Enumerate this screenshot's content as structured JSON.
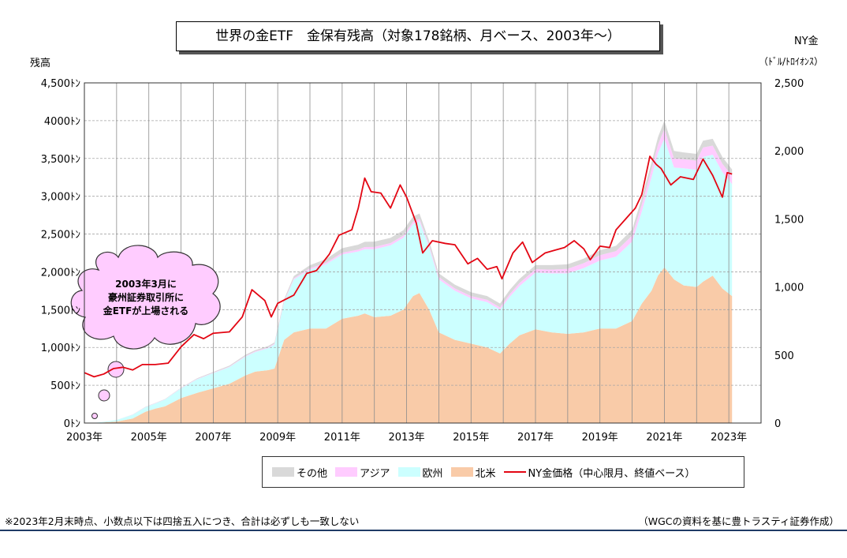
{
  "header": {
    "title": "世界の金ETF　金保有残高（対象178銘柄、月ベース、2003年～）",
    "left_axis_title": "残高",
    "right_axis_title": "NY金",
    "right_axis_unit": "（ﾄﾞﾙ/ﾄﾛｲｵﾝｽ）"
  },
  "callout": {
    "line1": "2003年3月に",
    "line2": "豪州証券取引所に",
    "line3": "金ETFが上場される"
  },
  "footer": {
    "note": "※2023年2月末時点、小数点以下は四捨五入につき、合計は必ずしも一致しない",
    "source": "（WGCの資料を基に豊トラスティ証券作成）"
  },
  "colors": {
    "other": "#d9d9d9",
    "asia": "#ffccff",
    "europe": "#ccffff",
    "north_america": "#f9cba8",
    "price": "#e30613",
    "grid": "#a6a6a6"
  },
  "chart_data": {
    "type": "area",
    "left_axis": {
      "min": 0,
      "max": 4500,
      "step": 500,
      "ticks": [
        "0ﾄﾝ",
        "500ﾄﾝ",
        "1,000ﾄﾝ",
        "1,500ﾄﾝ",
        "2,000ﾄﾝ",
        "2,500ﾄﾝ",
        "3,000ﾄﾝ",
        "3,500ﾄﾝ",
        "4000ﾄﾝ",
        "4,500ﾄﾝ"
      ]
    },
    "right_axis": {
      "min": 0,
      "max": 2500,
      "step": 500,
      "ticks": [
        "0",
        "500",
        "1,000",
        "1,500",
        "2,000",
        "2,500"
      ]
    },
    "x_axis": {
      "min": 2003,
      "max": 2024,
      "ticks": [
        {
          "x": 2003,
          "label": "2003年"
        },
        {
          "x": 2005,
          "label": "2005年"
        },
        {
          "x": 2007,
          "label": "2007年"
        },
        {
          "x": 2009,
          "label": "2009年"
        },
        {
          "x": 2011,
          "label": "2011年"
        },
        {
          "x": 2013,
          "label": "2013年"
        },
        {
          "x": 2015,
          "label": "2015年"
        },
        {
          "x": 2017,
          "label": "2017年"
        },
        {
          "x": 2019,
          "label": "2019年"
        },
        {
          "x": 2021,
          "label": "2021年"
        },
        {
          "x": 2023,
          "label": "2023年"
        }
      ],
      "gridlines": [
        2004,
        2005,
        2006,
        2007,
        2008,
        2009,
        2010,
        2011,
        2012,
        2013,
        2014,
        2015,
        2016,
        2017,
        2018,
        2019,
        2020,
        2021,
        2022,
        2023
      ]
    },
    "grid": true,
    "legend_position": "bottom",
    "x": [
      2003.2,
      2003.5,
      2004.0,
      2004.5,
      2004.9,
      2005.2,
      2005.5,
      2006.0,
      2006.5,
      2007.0,
      2007.5,
      2008.0,
      2008.3,
      2008.7,
      2008.9,
      2009.2,
      2009.5,
      2010.0,
      2010.5,
      2011.0,
      2011.5,
      2011.7,
      2012.0,
      2012.5,
      2012.9,
      2013.2,
      2013.4,
      2013.7,
      2014.0,
      2014.5,
      2015.0,
      2015.5,
      2015.9,
      2016.2,
      2016.5,
      2017.0,
      2017.5,
      2018.0,
      2018.5,
      2019.0,
      2019.5,
      2020.0,
      2020.3,
      2020.6,
      2020.8,
      2021.0,
      2021.3,
      2021.6,
      2022.0,
      2022.2,
      2022.5,
      2022.8,
      2023.1
    ],
    "series": [
      {
        "name": "北米",
        "kind": "area",
        "values": [
          0,
          5,
          20,
          60,
          150,
          190,
          220,
          330,
          400,
          460,
          520,
          630,
          680,
          700,
          720,
          1100,
          1200,
          1250,
          1250,
          1380,
          1420,
          1450,
          1400,
          1420,
          1500,
          1680,
          1720,
          1500,
          1200,
          1100,
          1050,
          1000,
          920,
          1050,
          1160,
          1240,
          1200,
          1180,
          1200,
          1250,
          1250,
          1350,
          1580,
          1750,
          1950,
          2060,
          1900,
          1820,
          1800,
          1870,
          1950,
          1780,
          1680
        ]
      },
      {
        "name": "欧州",
        "kind": "area",
        "values": [
          0,
          5,
          20,
          50,
          60,
          70,
          90,
          130,
          180,
          200,
          220,
          250,
          260,
          290,
          320,
          500,
          700,
          780,
          850,
          850,
          850,
          850,
          900,
          930,
          950,
          950,
          950,
          820,
          700,
          650,
          600,
          600,
          580,
          620,
          650,
          750,
          780,
          800,
          850,
          900,
          950,
          1050,
          1220,
          1500,
          1620,
          1700,
          1480,
          1550,
          1550,
          1650,
          1600,
          1540,
          1480
        ]
      },
      {
        "name": "アジア",
        "kind": "area",
        "values": [
          0,
          0,
          0,
          2,
          3,
          3,
          3,
          4,
          5,
          6,
          7,
          8,
          9,
          10,
          10,
          15,
          15,
          18,
          20,
          22,
          25,
          28,
          30,
          30,
          30,
          32,
          32,
          32,
          30,
          30,
          30,
          30,
          30,
          35,
          40,
          45,
          50,
          60,
          65,
          70,
          75,
          80,
          90,
          100,
          110,
          130,
          120,
          120,
          120,
          125,
          120,
          110,
          110
        ]
      },
      {
        "name": "その他",
        "kind": "area",
        "values": [
          0,
          0,
          0,
          2,
          3,
          3,
          4,
          5,
          8,
          10,
          12,
          15,
          15,
          18,
          18,
          25,
          30,
          40,
          50,
          60,
          65,
          70,
          70,
          70,
          70,
          70,
          70,
          60,
          50,
          50,
          50,
          50,
          50,
          55,
          55,
          55,
          60,
          60,
          60,
          65,
          70,
          80,
          90,
          95,
          100,
          110,
          100,
          90,
          90,
          90,
          90,
          90,
          85
        ]
      },
      {
        "name": "NY金価格（中心限月、終値ベース）",
        "kind": "line",
        "axis": "right",
        "x": [
          2003.0,
          2003.3,
          2003.6,
          2003.9,
          2004.2,
          2004.5,
          2004.8,
          2005.2,
          2005.6,
          2006.0,
          2006.4,
          2006.7,
          2007.0,
          2007.5,
          2007.9,
          2008.2,
          2008.6,
          2008.8,
          2009.0,
          2009.5,
          2009.9,
          2010.2,
          2010.6,
          2010.9,
          2011.3,
          2011.5,
          2011.7,
          2011.9,
          2012.2,
          2012.5,
          2012.8,
          2013.0,
          2013.3,
          2013.5,
          2013.8,
          2014.2,
          2014.5,
          2014.9,
          2015.2,
          2015.5,
          2015.8,
          2015.96,
          2016.3,
          2016.6,
          2016.9,
          2017.3,
          2017.6,
          2017.9,
          2018.2,
          2018.5,
          2018.7,
          2019.0,
          2019.3,
          2019.5,
          2019.8,
          2020.1,
          2020.3,
          2020.55,
          2020.75,
          2020.9,
          2021.2,
          2021.5,
          2021.9,
          2022.2,
          2022.5,
          2022.8,
          2022.95,
          2023.1
        ],
        "values": [
          370,
          340,
          360,
          400,
          410,
          390,
          430,
          430,
          440,
          560,
          650,
          620,
          660,
          670,
          780,
          980,
          900,
          780,
          880,
          940,
          1100,
          1120,
          1240,
          1380,
          1420,
          1580,
          1800,
          1700,
          1690,
          1580,
          1750,
          1660,
          1470,
          1250,
          1340,
          1320,
          1310,
          1170,
          1210,
          1130,
          1150,
          1060,
          1250,
          1330,
          1180,
          1250,
          1270,
          1290,
          1340,
          1280,
          1200,
          1300,
          1290,
          1420,
          1500,
          1580,
          1680,
          1960,
          1900,
          1870,
          1750,
          1810,
          1790,
          1940,
          1820,
          1660,
          1840,
          1830
        ]
      }
    ]
  }
}
